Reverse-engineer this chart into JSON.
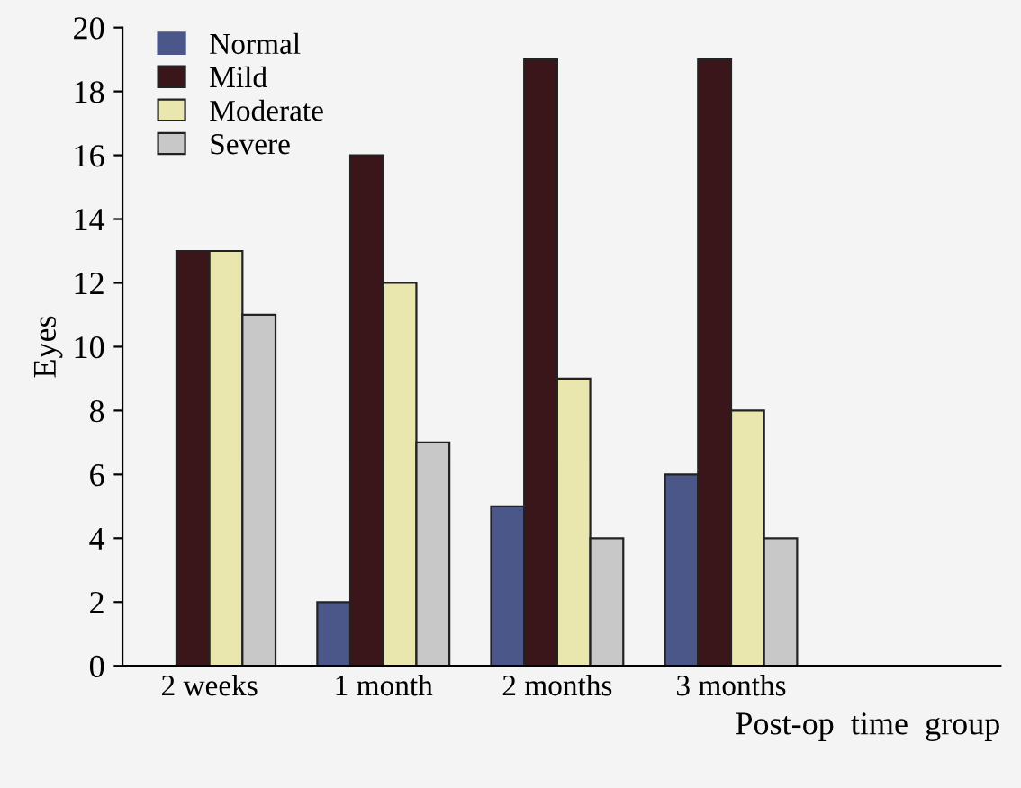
{
  "chart_data": {
    "type": "bar",
    "xlabel": "Post-op  time  group",
    "ylabel": "Eyes",
    "categories": [
      "2 weeks",
      "1 month",
      "2 months",
      "3 months"
    ],
    "series": [
      {
        "name": "Normal",
        "color": "#4b5689",
        "values": [
          0,
          2,
          5,
          6
        ]
      },
      {
        "name": "Mild",
        "color": "#3a1519",
        "values": [
          13,
          16,
          19,
          19
        ]
      },
      {
        "name": "Moderate",
        "color": "#e9e6ae",
        "values": [
          13,
          12,
          9,
          8
        ]
      },
      {
        "name": "Severe",
        "color": "#c8c8c8",
        "values": [
          11,
          7,
          4,
          4
        ]
      }
    ],
    "ylim": [
      0,
      20
    ],
    "yticks": [
      0,
      2,
      4,
      6,
      8,
      10,
      12,
      14,
      16,
      18,
      20
    ],
    "grid": false,
    "legend": "top left"
  }
}
